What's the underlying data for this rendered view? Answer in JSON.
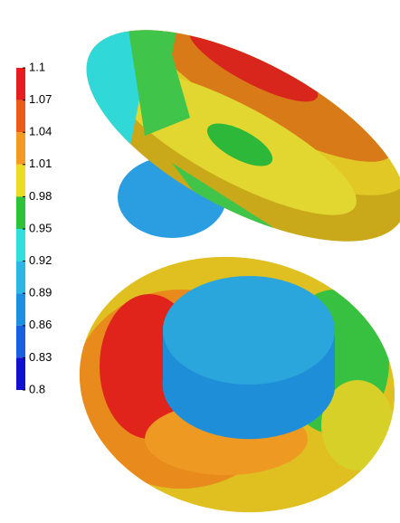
{
  "colorbar": {
    "ticks": [
      1.1,
      1.07,
      1.04,
      1.01,
      0.98,
      0.95,
      0.92,
      0.89,
      0.86,
      0.83,
      0.8
    ],
    "colors": [
      "#e81c1c",
      "#ee5a1a",
      "#f29a22",
      "#eedc22",
      "#2ec23a",
      "#2ee0e0",
      "#2cb6e2",
      "#1e8ee0",
      "#1a5ee2",
      "#1010d2"
    ]
  }
}
